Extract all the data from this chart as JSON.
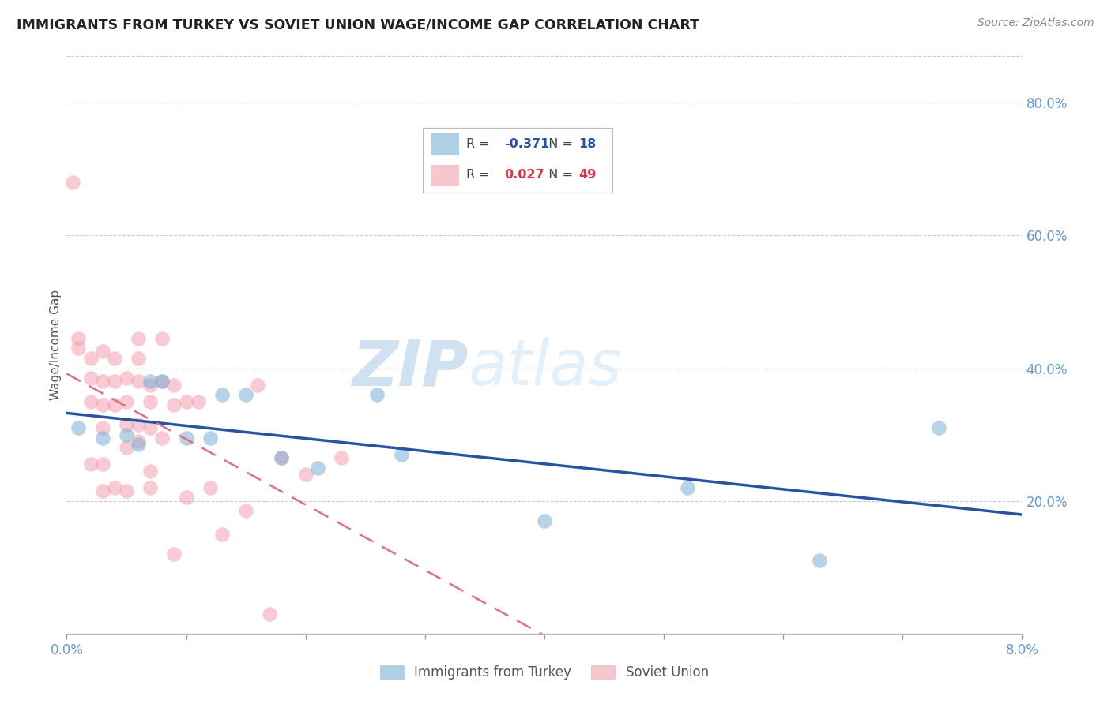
{
  "title": "IMMIGRANTS FROM TURKEY VS SOVIET UNION WAGE/INCOME GAP CORRELATION CHART",
  "source": "Source: ZipAtlas.com",
  "ylabel": "Wage/Income Gap",
  "right_yticks": [
    0.2,
    0.4,
    0.6,
    0.8
  ],
  "xmin": 0.0,
  "xmax": 0.08,
  "ymin": 0.0,
  "ymax": 0.87,
  "turkey_color": "#7BAFD4",
  "soviet_color": "#F4A0B0",
  "turkey_line_color": "#2255AA",
  "soviet_line_color": "#E07080",
  "turkey_R": -0.371,
  "turkey_N": 18,
  "soviet_R": 0.027,
  "soviet_N": 49,
  "legend_label_turkey": "Immigrants from Turkey",
  "legend_label_soviet": "Soviet Union",
  "watermark_zip": "ZIP",
  "watermark_atlas": "atlas",
  "grid_color": "#CCCCCC",
  "axis_tick_color": "#6699CC",
  "title_color": "#222222",
  "source_color": "#888888",
  "marker_size": 180,
  "turkey_x": [
    0.001,
    0.003,
    0.005,
    0.006,
    0.007,
    0.008,
    0.01,
    0.012,
    0.013,
    0.015,
    0.018,
    0.021,
    0.026,
    0.028,
    0.04,
    0.052,
    0.063,
    0.073
  ],
  "turkey_y": [
    0.31,
    0.295,
    0.3,
    0.285,
    0.38,
    0.38,
    0.295,
    0.295,
    0.36,
    0.36,
    0.265,
    0.25,
    0.36,
    0.27,
    0.17,
    0.22,
    0.11,
    0.31
  ],
  "soviet_x": [
    0.0005,
    0.001,
    0.001,
    0.002,
    0.002,
    0.002,
    0.002,
    0.003,
    0.003,
    0.003,
    0.003,
    0.003,
    0.003,
    0.004,
    0.004,
    0.004,
    0.004,
    0.005,
    0.005,
    0.005,
    0.005,
    0.005,
    0.006,
    0.006,
    0.006,
    0.006,
    0.006,
    0.007,
    0.007,
    0.007,
    0.007,
    0.007,
    0.008,
    0.008,
    0.008,
    0.009,
    0.009,
    0.009,
    0.01,
    0.01,
    0.011,
    0.012,
    0.013,
    0.015,
    0.016,
    0.017,
    0.018,
    0.02,
    0.023
  ],
  "soviet_y": [
    0.68,
    0.445,
    0.43,
    0.415,
    0.385,
    0.35,
    0.255,
    0.425,
    0.38,
    0.345,
    0.31,
    0.255,
    0.215,
    0.415,
    0.38,
    0.345,
    0.22,
    0.385,
    0.35,
    0.315,
    0.28,
    0.215,
    0.445,
    0.415,
    0.38,
    0.315,
    0.29,
    0.375,
    0.35,
    0.31,
    0.245,
    0.22,
    0.445,
    0.38,
    0.295,
    0.375,
    0.345,
    0.12,
    0.35,
    0.205,
    0.35,
    0.22,
    0.15,
    0.185,
    0.375,
    0.03,
    0.265,
    0.24,
    0.265
  ]
}
